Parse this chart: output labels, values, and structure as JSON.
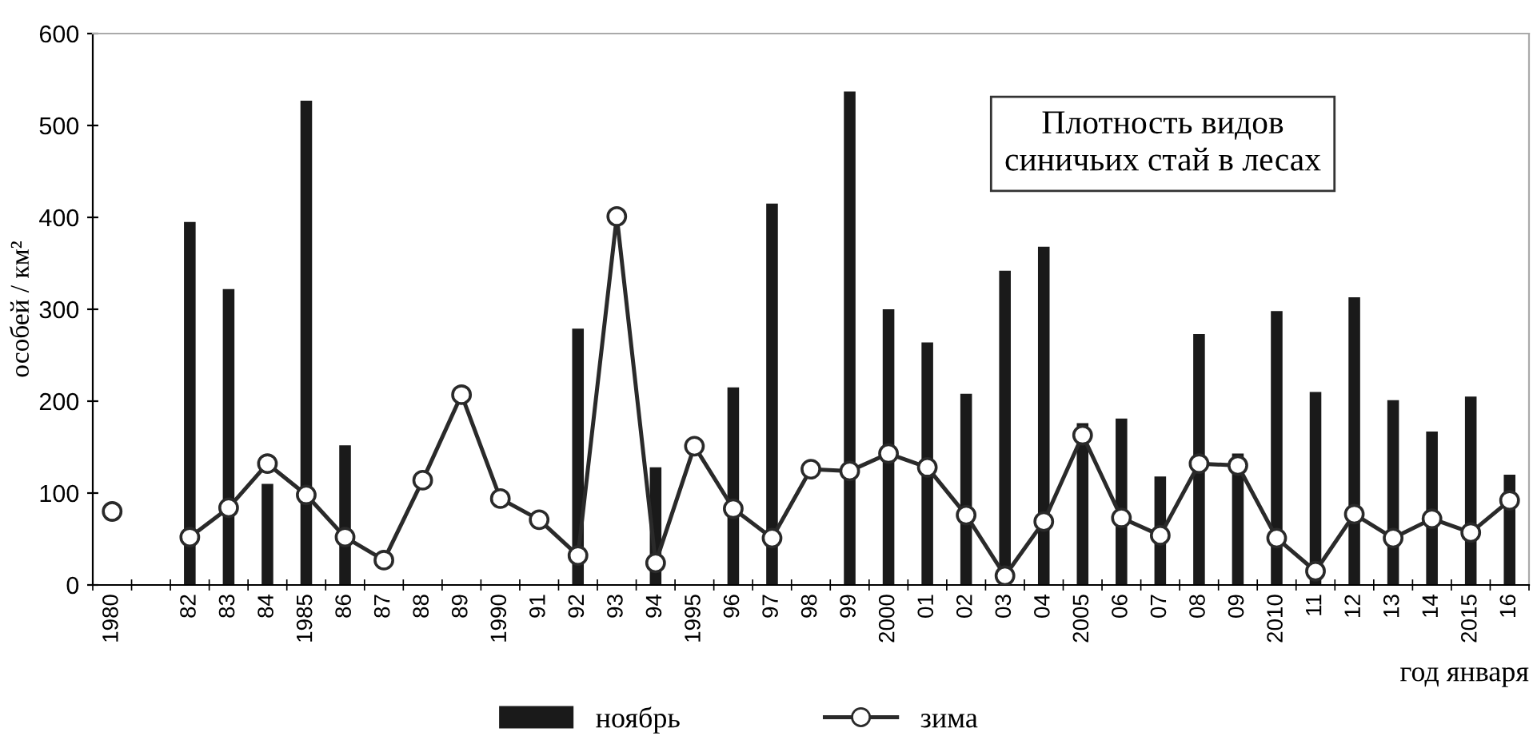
{
  "chart_data": {
    "type": "bar",
    "title": "Плотность видов\nсиничьих стай в лесах",
    "ylabel": "особей / км²",
    "xlabel": "год января",
    "categories": [
      "1980",
      null,
      "82",
      "83",
      "84",
      "1985",
      "86",
      "87",
      "88",
      "89",
      "1990",
      "91",
      "92",
      "93",
      "94",
      "1995",
      "96",
      "97",
      "98",
      "99",
      "2000",
      "01",
      "02",
      "03",
      "04",
      "2005",
      "06",
      "07",
      "08",
      "09",
      "2010",
      "11",
      "12",
      "13",
      "14",
      "2015",
      "16"
    ],
    "series": [
      {
        "name": "ноябрь",
        "color": "#1a1a1a",
        "values": [
          null,
          null,
          395,
          322,
          110,
          527,
          152,
          null,
          null,
          null,
          null,
          null,
          279,
          null,
          128,
          null,
          215,
          415,
          null,
          537,
          300,
          264,
          208,
          342,
          368,
          176,
          181,
          118,
          273,
          143,
          298,
          210,
          313,
          201,
          167,
          205,
          120
        ]
      },
      {
        "name": "зима",
        "type": "line",
        "color": "#2a2a2a",
        "marker": "circle",
        "values": [
          80,
          null,
          52,
          84,
          132,
          98,
          52,
          27,
          114,
          207,
          94,
          71,
          32,
          401,
          24,
          151,
          83,
          51,
          126,
          124,
          143,
          128,
          76,
          10,
          69,
          163,
          73,
          54,
          132,
          130,
          51,
          15,
          77,
          51,
          72,
          57,
          92
        ]
      }
    ],
    "ylim": [
      0,
      600
    ],
    "yticks": [
      0,
      100,
      200,
      300,
      400,
      500,
      600
    ],
    "grid": false,
    "legend": "bottom"
  }
}
